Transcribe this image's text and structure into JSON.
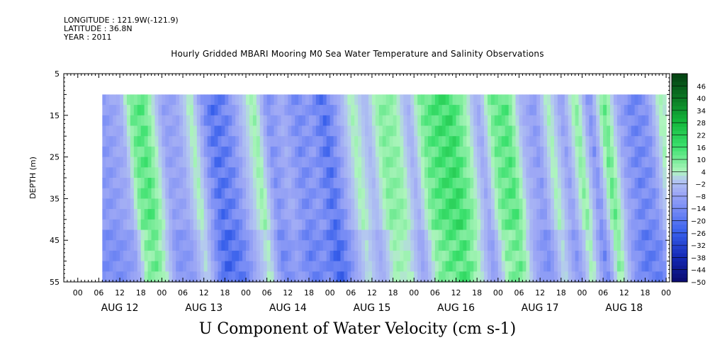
{
  "header": {
    "longitude": "LONGITUDE : 121.9W(-121.9)",
    "latitude": "LATITUDE : 36.8N",
    "year": "YEAR : 2011"
  },
  "chart_data": {
    "type": "heatmap",
    "title": "Hourly Gridded MBARI Mooring M0 Sea Water Temperature and Salinity Observations",
    "xlabel": "U Component of Water Velocity (cm s-1)",
    "ylabel": "DEPTH (m)",
    "ylim": [
      55,
      5
    ],
    "y_ticks": [
      "5",
      "15",
      "25",
      "35",
      "45",
      "55"
    ],
    "x_hour_ticks": [
      "00",
      "06",
      "12",
      "18",
      "00",
      "06",
      "12",
      "18",
      "00",
      "06",
      "12",
      "18",
      "00",
      "06",
      "12",
      "18",
      "00",
      "06",
      "12",
      "18",
      "00",
      "06",
      "12",
      "18",
      "00",
      "06",
      "12",
      "18",
      "00"
    ],
    "x_day_labels": [
      "AUG 12",
      "AUG 13",
      "AUG 14",
      "AUG 15",
      "AUG 16",
      "AUG 17",
      "AUG 18"
    ],
    "data_start_hour": 7,
    "data_end_hour": 168,
    "data_depth_range": [
      10,
      55
    ],
    "colorbar_levels": [
      46,
      40,
      34,
      28,
      22,
      16,
      10,
      4,
      -2,
      -8,
      -14,
      -20,
      -26,
      -32,
      -38,
      -44,
      -50
    ],
    "velocity_profile": {
      "hours": [
        7,
        12,
        15,
        18,
        21,
        24,
        28,
        32,
        36,
        38,
        42,
        46,
        50,
        54,
        58,
        62,
        66,
        70,
        74,
        78,
        82,
        86,
        90,
        94,
        98,
        102,
        106,
        110,
        114,
        118,
        122,
        126,
        130,
        134,
        138,
        142,
        146,
        150,
        154,
        158,
        162,
        166,
        168
      ],
      "u_cm_s": [
        -12,
        -6,
        12,
        16,
        4,
        -10,
        -8,
        6,
        -16,
        -24,
        -18,
        -4,
        8,
        -14,
        -6,
        -16,
        -12,
        -24,
        -8,
        6,
        -4,
        10,
        8,
        -6,
        12,
        18,
        20,
        8,
        -8,
        12,
        16,
        -4,
        -12,
        6,
        -10,
        10,
        -14,
        14,
        -8,
        -18,
        -14,
        6,
        2
      ]
    }
  }
}
